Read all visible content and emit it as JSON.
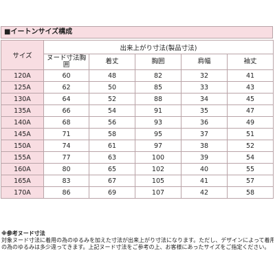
{
  "title": "■イートンサイズ構成",
  "table": {
    "size_header": "サイズ",
    "group_header": "出来上がり寸法(製品寸法)",
    "columns": [
      "ヌード寸法胸囲",
      "着丈",
      "胸囲",
      "肩幅",
      "袖丈"
    ],
    "rows": [
      {
        "size": "120A",
        "values": [
          "60",
          "48",
          "82",
          "32",
          "41"
        ]
      },
      {
        "size": "125A",
        "values": [
          "62",
          "50",
          "85",
          "33",
          "43"
        ]
      },
      {
        "size": "130A",
        "values": [
          "64",
          "52",
          "88",
          "34",
          "45"
        ]
      },
      {
        "size": "135A",
        "values": [
          "66",
          "54",
          "91",
          "35",
          "47"
        ]
      },
      {
        "size": "140A",
        "values": [
          "68",
          "56",
          "93",
          "36",
          "49"
        ]
      },
      {
        "size": "145A",
        "values": [
          "71",
          "58",
          "95",
          "37",
          "51"
        ]
      },
      {
        "size": "150A",
        "values": [
          "74",
          "61",
          "97",
          "38",
          "52"
        ]
      },
      {
        "size": "155A",
        "values": [
          "77",
          "63",
          "100",
          "39",
          "54"
        ]
      },
      {
        "size": "160A",
        "values": [
          "80",
          "65",
          "102",
          "40",
          "55"
        ]
      },
      {
        "size": "165A",
        "values": [
          "83",
          "67",
          "105",
          "41",
          "57"
        ]
      },
      {
        "size": "170A",
        "values": [
          "86",
          "69",
          "107",
          "42",
          "58"
        ]
      }
    ]
  },
  "notes": {
    "title": "※参考ヌード寸法",
    "line1": "対象ヌード寸法に着用の為のゆるみを加えた寸法が出来上がり寸法になります。ただし、デザインによって着用",
    "line2": "の為のゆるみは多少違ってきます。上記ヌード寸法をご参考の上、お客様にあったサイズをご指定ください。"
  },
  "colors": {
    "header_bg": "#f8dde2",
    "border": "#b9a3a7"
  }
}
